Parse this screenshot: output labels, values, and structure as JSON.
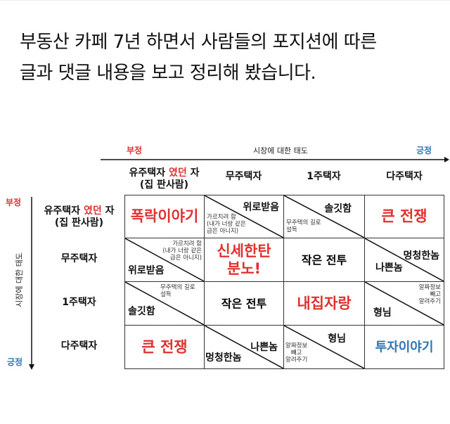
{
  "title": [
    "부동산 카페 7년 하면서 사람들의 포지션에 따른",
    "글과 댓글 내용을 보고 정리해 봤습니다."
  ],
  "axis": {
    "label": "시장에 대한 태도",
    "neg": "부정",
    "pos": "긍정"
  },
  "columns": [
    {
      "a": "유주택자 ",
      "b": "였던",
      "c": " 자",
      "d": "(집 판사람)"
    },
    {
      "a": "무주택자"
    },
    {
      "a": "1주택자"
    },
    {
      "a": "다주택자"
    }
  ],
  "rows": [
    {
      "a": "유주택자 ",
      "b": "였던",
      "c": " 자",
      "d": "(집 판사람)"
    },
    {
      "a": "무주택자"
    },
    {
      "a": "1주택자"
    },
    {
      "a": "다주택자"
    }
  ],
  "cells": {
    "r0c0": "폭락이야기",
    "r0c1": {
      "upper": "위로받음",
      "lower": [
        "가르치려 함",
        "(내가 너랑 같은",
        "급은 아니지)"
      ]
    },
    "r0c2": {
      "upper": "솔깃함",
      "lower": [
        "무주택의 길로",
        "설득"
      ]
    },
    "r0c3": "큰 전쟁",
    "r1c0": {
      "upper": [
        "가르치려 함",
        "(내가 너랑 같은",
        "급은 아니지)"
      ],
      "lower": "위로받음"
    },
    "r1c1": [
      "신세한탄",
      "분노!"
    ],
    "r1c2": "작은 전투",
    "r1c3": {
      "upper": "멍청한놈",
      "lower": "나쁜놈"
    },
    "r2c0": {
      "upper": [
        "무주택의 길로",
        "설득"
      ],
      "lower": "솔깃함"
    },
    "r2c1": "작은 전투",
    "r2c2": "내집자랑",
    "r2c3": {
      "upper": [
        "알짜정보",
        "빼고",
        "알려주기"
      ],
      "lower": "형님"
    },
    "r3c0": "큰 전쟁",
    "r3c1": {
      "upper": "나쁜놈",
      "lower": "멍청한놈"
    },
    "r3c2": {
      "upper": "형님",
      "lower": [
        "알짜정보",
        "빼고",
        "알려주기"
      ]
    },
    "r3c3": "투자이야기"
  },
  "colors": {
    "negative": "#e03030",
    "positive": "#2e75b6"
  }
}
